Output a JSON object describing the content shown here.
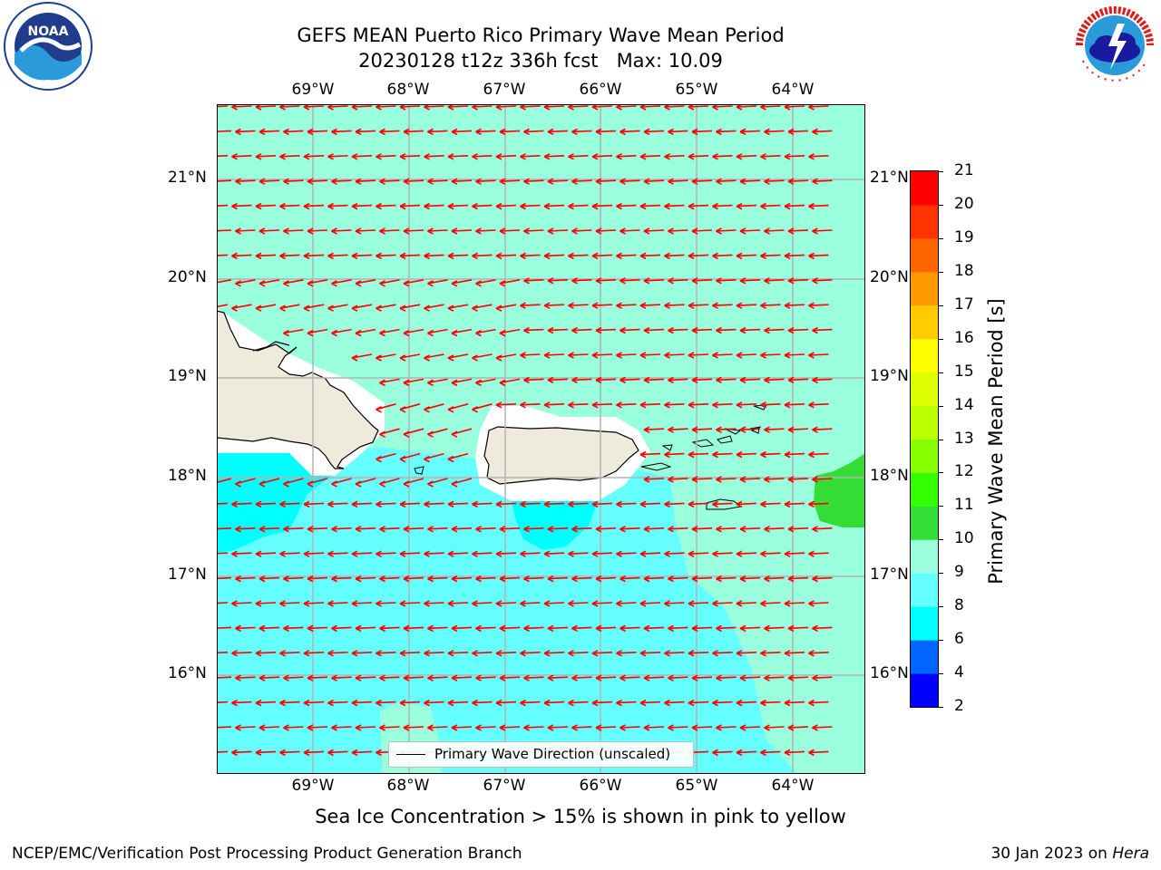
{
  "header": {
    "title_line1": "GEFS MEAN Puerto Rico Primary Wave Mean Period",
    "title_line2": "20230128 t12z 336h fcst   Max: 10.09"
  },
  "logos": {
    "left": {
      "text": "NOAA",
      "ring_text": "NATIONAL OCEANIC AND ATMOSPHERIC ADMINISTRATION",
      "ring_text_bottom": "U.S. DEPARTMENT OF COMMERCE"
    },
    "right": {
      "ring_text": "NATIONAL WEATHER SERVICE"
    }
  },
  "map": {
    "lon_ticks": [
      "69°W",
      "68°W",
      "67°W",
      "66°W",
      "65°W",
      "64°W"
    ],
    "lat_ticks": [
      "21°N",
      "20°N",
      "19°N",
      "18°N",
      "17°N",
      "16°N"
    ],
    "legend_label": "Primary Wave Direction (unscaled)",
    "arrow_color": "#ff0000",
    "land_color": "#efebdc",
    "grid_color": "#b3b3b3"
  },
  "colorbar": {
    "title": "Primary Wave Mean Period [s]",
    "ticks": [
      "21",
      "20",
      "19",
      "18",
      "17",
      "16",
      "15",
      "14",
      "13",
      "12",
      "11",
      "10",
      "9",
      "8",
      "6",
      "4",
      "2"
    ],
    "colors_bottom_to_top": [
      "#0000ff",
      "#0066ff",
      "#00ffff",
      "#66ffff",
      "#99ffdd",
      "#33dd33",
      "#33ff00",
      "#88ff00",
      "#bbff00",
      "#ddff00",
      "#ffff00",
      "#ffcc00",
      "#ff9900",
      "#ff6600",
      "#ff3300",
      "#ff0000"
    ]
  },
  "note": "Sea Ice Concentration > 15% is shown in pink to yellow",
  "footer": {
    "left": "NCEP/EMC/Verification Post Processing Product Generation Branch",
    "right_date": "30 Jan 2023 on ",
    "right_machine": "Hera"
  }
}
